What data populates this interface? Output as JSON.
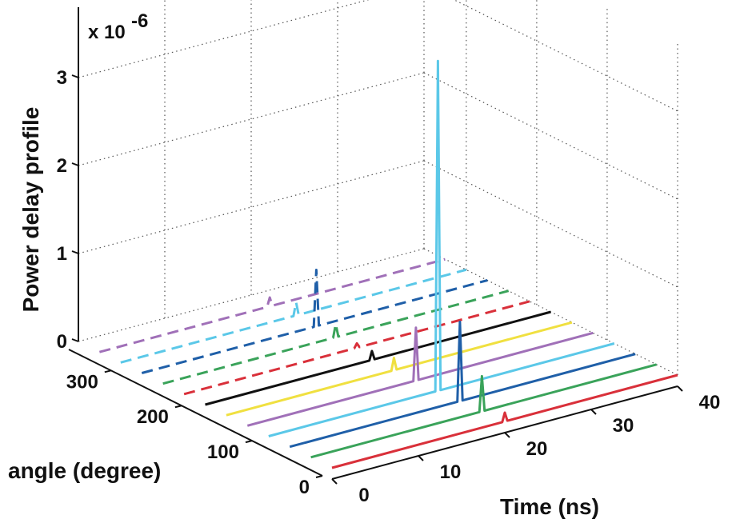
{
  "chart_data": {
    "type": "waterfall3d",
    "zlabel": "Power delay profile",
    "xlabel": "Time (ns)",
    "ylabel": "angle (degree)",
    "zmultiplier": {
      "base": "x 10",
      "exponent": "-6"
    },
    "xlim": [
      0,
      40
    ],
    "xticks": [
      0,
      10,
      20,
      30,
      40
    ],
    "ylim": [
      0,
      360
    ],
    "yticks": [
      0,
      100,
      200,
      300
    ],
    "zlim": [
      0,
      3.8
    ],
    "zticks": [
      0,
      1,
      2,
      3
    ],
    "grid": true,
    "series": [
      {
        "angle": 0,
        "color": "#d9303a",
        "dash": "solid",
        "x": [
          0,
          19.7,
          20,
          20.3,
          40
        ],
        "values": [
          0,
          0,
          0.1,
          0,
          0
        ]
      },
      {
        "angle": 30,
        "color": "#3aa35a",
        "dash": "solid",
        "x": [
          0,
          19.5,
          19.8,
          20.1,
          40
        ],
        "values": [
          0,
          0,
          0.4,
          0,
          0
        ]
      },
      {
        "angle": 60,
        "color": "#1f5fa8",
        "dash": "solid",
        "x": [
          0,
          19.4,
          19.7,
          20.0,
          40
        ],
        "values": [
          0,
          0,
          0.9,
          0,
          0
        ]
      },
      {
        "angle": 90,
        "color": "#5bc8e8",
        "dash": "solid",
        "x": [
          0,
          19.3,
          19.6,
          19.9,
          40
        ],
        "values": [
          0,
          0,
          3.75,
          0,
          0
        ]
      },
      {
        "angle": 120,
        "color": "#a070b8",
        "dash": "solid",
        "x": [
          0,
          19.2,
          19.5,
          19.8,
          40
        ],
        "values": [
          0,
          0,
          0.6,
          0,
          0
        ]
      },
      {
        "angle": 150,
        "color": "#f0e040",
        "dash": "solid",
        "x": [
          0,
          19.1,
          19.4,
          19.7,
          40
        ],
        "values": [
          0,
          0,
          0.14,
          0,
          0
        ]
      },
      {
        "angle": 180,
        "color": "#111111",
        "dash": "solid",
        "x": [
          0,
          19.0,
          19.3,
          19.6,
          40
        ],
        "values": [
          0,
          0,
          0.1,
          0,
          0
        ]
      },
      {
        "angle": 210,
        "color": "#d9303a",
        "dash": "dashed",
        "x": [
          0,
          19.7,
          20,
          20.3,
          40
        ],
        "values": [
          0,
          0,
          0.05,
          0,
          0
        ]
      },
      {
        "angle": 240,
        "color": "#3aa35a",
        "dash": "dashed",
        "x": [
          0,
          19.7,
          20,
          20.3,
          40
        ],
        "values": [
          0,
          0,
          0.15,
          0,
          0
        ]
      },
      {
        "angle": 270,
        "color": "#1f5fa8",
        "dash": "dashed",
        "x": [
          0,
          19.9,
          20.2,
          20.5,
          40
        ],
        "values": [
          0,
          0,
          0.64,
          0,
          0
        ]
      },
      {
        "angle": 300,
        "color": "#5bc8e8",
        "dash": "dashed",
        "x": [
          0,
          20.0,
          20.3,
          20.6,
          40
        ],
        "values": [
          0,
          0,
          0.15,
          0,
          0
        ]
      },
      {
        "angle": 330,
        "color": "#a070b8",
        "dash": "dashed",
        "x": [
          0,
          19.4,
          19.7,
          20.0,
          40
        ],
        "values": [
          0,
          0,
          0.1,
          0,
          0
        ]
      }
    ]
  }
}
